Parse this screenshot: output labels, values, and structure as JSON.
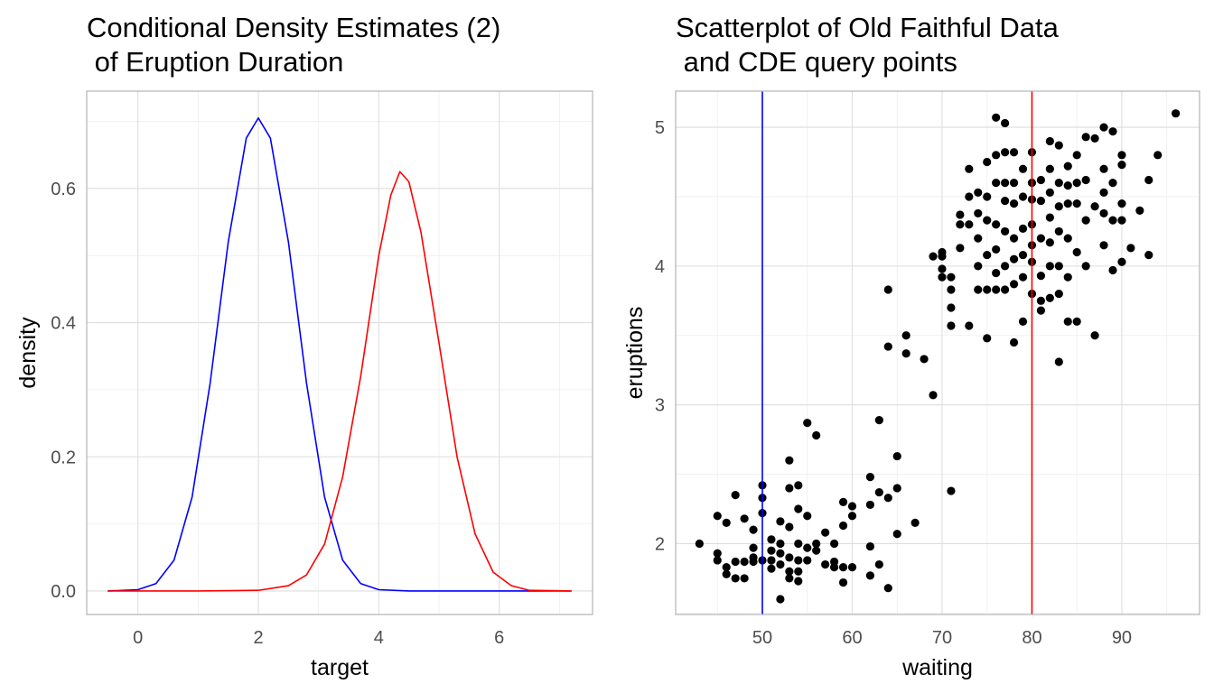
{
  "chart_data": [
    {
      "type": "line",
      "title": [
        "Conditional Density Estimates (2)",
        " of Eruption Duration"
      ],
      "xlabel": "target",
      "ylabel": "density",
      "xlim": [
        -0.85,
        7.55
      ],
      "ylim": [
        -0.035,
        0.745
      ],
      "x_ticks": [
        0,
        2,
        4,
        6
      ],
      "y_ticks": [
        0.0,
        0.2,
        0.4,
        0.6
      ],
      "x_tick_labels": [
        "0",
        "2",
        "4",
        "6"
      ],
      "y_tick_labels": [
        "0.0",
        "0.2",
        "0.4",
        "0.6"
      ],
      "grid": true,
      "series": [
        {
          "color": "#0000ff",
          "x": [
            -0.5,
            0.0,
            0.3,
            0.6,
            0.9,
            1.2,
            1.5,
            1.8,
            2.0,
            2.2,
            2.5,
            2.8,
            3.1,
            3.4,
            3.7,
            4.0,
            4.5,
            5.0,
            6.0,
            7.2
          ],
          "y": [
            0.0,
            0.002,
            0.011,
            0.046,
            0.14,
            0.31,
            0.52,
            0.675,
            0.705,
            0.675,
            0.52,
            0.31,
            0.14,
            0.046,
            0.011,
            0.002,
            0.0,
            0.0,
            0.0,
            0.0
          ]
        },
        {
          "color": "#ff0000",
          "x": [
            -0.5,
            1.0,
            2.0,
            2.5,
            2.8,
            3.1,
            3.4,
            3.7,
            4.0,
            4.2,
            4.35,
            4.5,
            4.7,
            5.0,
            5.3,
            5.6,
            5.9,
            6.2,
            6.5,
            7.2
          ],
          "y": [
            0.0,
            0.0,
            0.001,
            0.008,
            0.024,
            0.07,
            0.17,
            0.32,
            0.5,
            0.59,
            0.625,
            0.61,
            0.535,
            0.37,
            0.2,
            0.085,
            0.028,
            0.008,
            0.001,
            0.0
          ]
        }
      ]
    },
    {
      "type": "scatter",
      "title": [
        "Scatterplot of Old Faithful Data",
        " and CDE query points"
      ],
      "xlabel": "waiting",
      "ylabel": "eruptions",
      "xlim": [
        40.35,
        98.65
      ],
      "ylim": [
        1.4895,
        5.2605
      ],
      "x_ticks": [
        50,
        60,
        70,
        80,
        90
      ],
      "y_ticks": [
        2,
        3,
        4,
        5
      ],
      "x_tick_labels": [
        "50",
        "60",
        "70",
        "80",
        "90"
      ],
      "y_tick_labels": [
        "2",
        "3",
        "4",
        "5"
      ],
      "grid": true,
      "point_color": "#000000",
      "vlines": [
        {
          "x": 50,
          "color": "#0000ff"
        },
        {
          "x": 80,
          "color": "#ff0000"
        }
      ],
      "points": [
        [
          43,
          2.0
        ],
        [
          45,
          1.93
        ],
        [
          45,
          1.88
        ],
        [
          45,
          2.2
        ],
        [
          46,
          2.15
        ],
        [
          46,
          1.83
        ],
        [
          46,
          1.78
        ],
        [
          47,
          1.75
        ],
        [
          47,
          1.87
        ],
        [
          47,
          2.35
        ],
        [
          48,
          2.18
        ],
        [
          48,
          1.87
        ],
        [
          48,
          1.75
        ],
        [
          49,
          1.97
        ],
        [
          49,
          2.1
        ],
        [
          49,
          1.9
        ],
        [
          49,
          1.87
        ],
        [
          50,
          2.42
        ],
        [
          50,
          2.33
        ],
        [
          50,
          2.22
        ],
        [
          50,
          1.88
        ],
        [
          51,
          1.88
        ],
        [
          51,
          1.95
        ],
        [
          51,
          2.03
        ],
        [
          51,
          1.82
        ],
        [
          52,
          1.6
        ],
        [
          52,
          1.85
        ],
        [
          52,
          1.93
        ],
        [
          52,
          2.0
        ],
        [
          52,
          2.16
        ],
        [
          53,
          2.6
        ],
        [
          53,
          2.4
        ],
        [
          53,
          2.12
        ],
        [
          53,
          1.9
        ],
        [
          53,
          1.8
        ],
        [
          53,
          1.75
        ],
        [
          54,
          1.8
        ],
        [
          54,
          2.42
        ],
        [
          54,
          2.0
        ],
        [
          54,
          1.73
        ],
        [
          54,
          1.88
        ],
        [
          54,
          2.25
        ],
        [
          55,
          2.87
        ],
        [
          55,
          2.2
        ],
        [
          55,
          1.97
        ],
        [
          55,
          1.88
        ],
        [
          56,
          2.78
        ],
        [
          56,
          2.0
        ],
        [
          56,
          1.95
        ],
        [
          57,
          2.08
        ],
        [
          57,
          1.85
        ],
        [
          58,
          2.0
        ],
        [
          58,
          1.87
        ],
        [
          58,
          1.83
        ],
        [
          59,
          2.3
        ],
        [
          59,
          2.13
        ],
        [
          59,
          1.83
        ],
        [
          59,
          1.72
        ],
        [
          60,
          2.27
        ],
        [
          60,
          1.83
        ],
        [
          60,
          2.2
        ],
        [
          62,
          2.48
        ],
        [
          62,
          2.28
        ],
        [
          62,
          1.98
        ],
        [
          62,
          1.77
        ],
        [
          63,
          2.89
        ],
        [
          63,
          2.37
        ],
        [
          63,
          1.85
        ],
        [
          64,
          3.83
        ],
        [
          64,
          3.42
        ],
        [
          64,
          2.33
        ],
        [
          64,
          1.68
        ],
        [
          65,
          2.63
        ],
        [
          65,
          2.4
        ],
        [
          65,
          2.07
        ],
        [
          66,
          3.5
        ],
        [
          66,
          3.37
        ],
        [
          67,
          2.15
        ],
        [
          68,
          3.33
        ],
        [
          69,
          3.07
        ],
        [
          69,
          4.07
        ],
        [
          70,
          4.1
        ],
        [
          70,
          4.07
        ],
        [
          70,
          3.98
        ],
        [
          70,
          3.92
        ],
        [
          71,
          3.83
        ],
        [
          71,
          3.7
        ],
        [
          71,
          3.57
        ],
        [
          71,
          2.38
        ],
        [
          71,
          3.92
        ],
        [
          72,
          4.3
        ],
        [
          72,
          4.37
        ],
        [
          72,
          4.13
        ],
        [
          73,
          4.7
        ],
        [
          73,
          4.5
        ],
        [
          73,
          4.3
        ],
        [
          73,
          3.57
        ],
        [
          74,
          4.53
        ],
        [
          74,
          4.38
        ],
        [
          74,
          4.2
        ],
        [
          74,
          4.0
        ],
        [
          74,
          3.83
        ],
        [
          75,
          4.75
        ],
        [
          75,
          4.5
        ],
        [
          75,
          4.33
        ],
        [
          75,
          4.08
        ],
        [
          75,
          3.83
        ],
        [
          75,
          3.48
        ],
        [
          76,
          5.07
        ],
        [
          76,
          4.8
        ],
        [
          76,
          4.6
        ],
        [
          76,
          4.3
        ],
        [
          76,
          4.12
        ],
        [
          76,
          3.95
        ],
        [
          76,
          3.83
        ],
        [
          77,
          5.03
        ],
        [
          77,
          4.82
        ],
        [
          77,
          4.6
        ],
        [
          77,
          4.47
        ],
        [
          77,
          4.25
        ],
        [
          77,
          4.0
        ],
        [
          77,
          3.83
        ],
        [
          78,
          4.82
        ],
        [
          78,
          4.6
        ],
        [
          78,
          4.45
        ],
        [
          78,
          4.2
        ],
        [
          78,
          4.05
        ],
        [
          78,
          3.87
        ],
        [
          78,
          3.45
        ],
        [
          79,
          4.7
        ],
        [
          79,
          4.5
        ],
        [
          79,
          4.27
        ],
        [
          79,
          4.08
        ],
        [
          79,
          3.92
        ],
        [
          79,
          3.6
        ],
        [
          80,
          4.82
        ],
        [
          80,
          4.6
        ],
        [
          80,
          4.48
        ],
        [
          80,
          4.3
        ],
        [
          80,
          4.15
        ],
        [
          80,
          4.03
        ],
        [
          80,
          3.8
        ],
        [
          81,
          4.62
        ],
        [
          81,
          4.47
        ],
        [
          81,
          4.2
        ],
        [
          81,
          3.93
        ],
        [
          81,
          3.75
        ],
        [
          81,
          3.68
        ],
        [
          82,
          4.9
        ],
        [
          82,
          4.7
        ],
        [
          82,
          4.53
        ],
        [
          82,
          4.35
        ],
        [
          82,
          4.17
        ],
        [
          82,
          4.0
        ],
        [
          82,
          3.77
        ],
        [
          83,
          4.87
        ],
        [
          83,
          4.6
        ],
        [
          83,
          4.43
        ],
        [
          83,
          4.25
        ],
        [
          83,
          4.0
        ],
        [
          83,
          3.8
        ],
        [
          83,
          3.31
        ],
        [
          84,
          4.72
        ],
        [
          84,
          4.58
        ],
        [
          84,
          4.45
        ],
        [
          84,
          4.2
        ],
        [
          84,
          3.92
        ],
        [
          84,
          3.6
        ],
        [
          85,
          4.8
        ],
        [
          85,
          4.6
        ],
        [
          85,
          4.45
        ],
        [
          85,
          4.1
        ],
        [
          85,
          3.6
        ],
        [
          86,
          4.93
        ],
        [
          86,
          4.62
        ],
        [
          86,
          4.33
        ],
        [
          86,
          4.0
        ],
        [
          87,
          4.92
        ],
        [
          87,
          4.43
        ],
        [
          87,
          3.5
        ],
        [
          88,
          5.0
        ],
        [
          88,
          4.7
        ],
        [
          88,
          4.53
        ],
        [
          88,
          4.38
        ],
        [
          88,
          4.15
        ],
        [
          89,
          4.97
        ],
        [
          89,
          4.6
        ],
        [
          89,
          4.33
        ],
        [
          89,
          3.97
        ],
        [
          90,
          4.8
        ],
        [
          90,
          4.73
        ],
        [
          90,
          4.45
        ],
        [
          90,
          4.33
        ],
        [
          90,
          4.03
        ],
        [
          91,
          4.13
        ],
        [
          92,
          4.4
        ],
        [
          93,
          4.62
        ],
        [
          93,
          4.08
        ],
        [
          94,
          4.8
        ],
        [
          96,
          5.1
        ]
      ]
    }
  ]
}
